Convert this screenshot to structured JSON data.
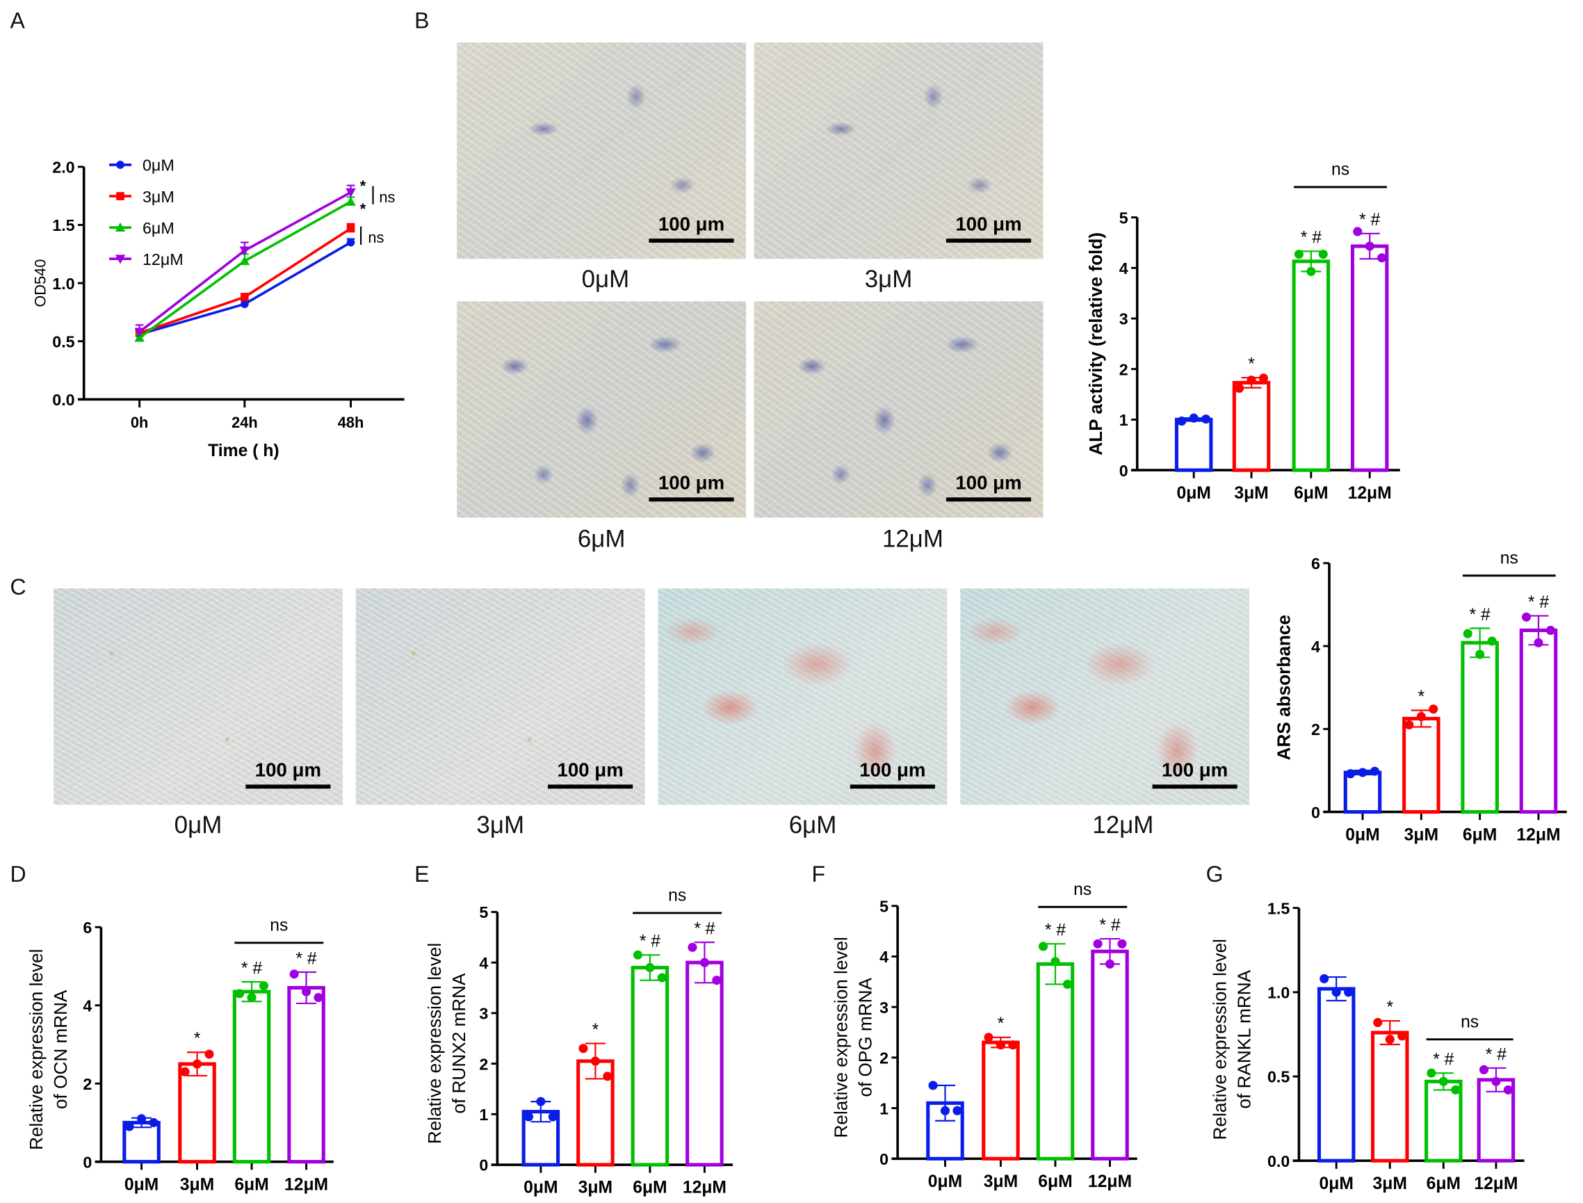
{
  "panels": {
    "A": "A",
    "B": "B",
    "C": "C",
    "D": "D",
    "E": "E",
    "F": "F",
    "G": "G"
  },
  "scale_bar": "100 μm",
  "B_images": [
    "0μM",
    "3μM",
    "6μM",
    "12μM"
  ],
  "C_images": [
    "0μM",
    "3μM",
    "6μM",
    "12μM"
  ],
  "colors": {
    "0μM": "#0a1de8",
    "3μM": "#ff0000",
    "6μM": "#00c000",
    "12μM": "#a000e0"
  },
  "chart_data": [
    {
      "id": "A",
      "type": "line",
      "xlabel": "Time ( h)",
      "ylabel": "OD540",
      "categories": [
        "0h",
        "24h",
        "48h"
      ],
      "ylim": [
        0,
        2.0
      ],
      "yticks": [
        "0.0",
        "0.5",
        "1.0",
        "1.5",
        "2.0"
      ],
      "legend": "top-left",
      "series": [
        {
          "name": "0μM",
          "values": [
            0.56,
            0.82,
            1.35
          ],
          "err": [
            0.03,
            0.03,
            0.03
          ]
        },
        {
          "name": "3μM",
          "values": [
            0.57,
            0.88,
            1.47
          ],
          "err": [
            0.03,
            0.03,
            0.04
          ]
        },
        {
          "name": "6μM",
          "values": [
            0.53,
            1.19,
            1.7
          ],
          "err": [
            0.03,
            0.06,
            0.04
          ]
        },
        {
          "name": "12μM",
          "values": [
            0.58,
            1.28,
            1.78
          ],
          "err": [
            0.06,
            0.07,
            0.06
          ]
        }
      ],
      "annotations": [
        "*",
        "*",
        "ns",
        "ns"
      ]
    },
    {
      "id": "B",
      "type": "bar",
      "ylabel": "ALP activity (relative fold)",
      "categories": [
        "0μM",
        "3μM",
        "6μM",
        "12μM"
      ],
      "ylim": [
        0,
        5
      ],
      "yticks": [
        "0",
        "1",
        "2",
        "3",
        "4",
        "5"
      ],
      "values": [
        1.0,
        1.73,
        4.13,
        4.43
      ],
      "sd": [
        0.03,
        0.1,
        0.2,
        0.25
      ],
      "points": [
        [
          0.97,
          1.03,
          1.01
        ],
        [
          1.62,
          1.78,
          1.82
        ],
        [
          4.27,
          3.93,
          4.27
        ],
        [
          4.72,
          4.43,
          4.2
        ]
      ],
      "marks": [
        "",
        "*",
        "*#",
        "*#"
      ],
      "bracket": {
        "from": 2,
        "to": 3,
        "label": "ns",
        "level": 5.6
      }
    },
    {
      "id": "C",
      "type": "bar",
      "ylabel": "ARS absorbance",
      "categories": [
        "0μM",
        "3μM",
        "6μM",
        "12μM"
      ],
      "ylim": [
        0,
        6
      ],
      "yticks": [
        "0",
        "2",
        "4",
        "6"
      ],
      "values": [
        0.95,
        2.25,
        4.08,
        4.38
      ],
      "sd": [
        0.05,
        0.2,
        0.35,
        0.35
      ],
      "points": [
        [
          0.92,
          0.95,
          0.98
        ],
        [
          2.1,
          2.3,
          2.48
        ],
        [
          4.3,
          3.8,
          4.12
        ],
        [
          4.7,
          4.08,
          4.38
        ]
      ],
      "marks": [
        "",
        "*",
        "*#",
        "*#"
      ],
      "bracket": {
        "from": 2,
        "to": 3,
        "label": "ns",
        "level": 5.7
      }
    },
    {
      "id": "D",
      "type": "bar",
      "ylabel": [
        "Relative expression level",
        "of OCN mRNA"
      ],
      "categories": [
        "0μM",
        "3μM",
        "6μM",
        "12μM"
      ],
      "ylim": [
        0,
        6
      ],
      "yticks": [
        "0",
        "2",
        "4",
        "6"
      ],
      "values": [
        1.0,
        2.5,
        4.35,
        4.45
      ],
      "sd": [
        0.12,
        0.3,
        0.25,
        0.4
      ],
      "points": [
        [
          0.9,
          1.1,
          1.0
        ],
        [
          2.3,
          2.5,
          2.75
        ],
        [
          4.3,
          4.2,
          4.5
        ],
        [
          4.8,
          4.35,
          4.2
        ]
      ],
      "marks": [
        "",
        "*",
        "*#",
        "*#"
      ],
      "bracket": {
        "from": 2,
        "to": 3,
        "label": "ns",
        "level": 5.6
      }
    },
    {
      "id": "E",
      "type": "bar",
      "ylabel": [
        "Relative expression level",
        "of RUNX2 mRNA"
      ],
      "categories": [
        "0μM",
        "3μM",
        "6μM",
        "12μM"
      ],
      "ylim": [
        0,
        5
      ],
      "yticks": [
        "0",
        "1",
        "2",
        "3",
        "4",
        "5"
      ],
      "values": [
        1.05,
        2.05,
        3.9,
        4.0
      ],
      "sd": [
        0.2,
        0.35,
        0.25,
        0.4
      ],
      "points": [
        [
          0.95,
          1.25,
          0.95
        ],
        [
          2.3,
          2.05,
          1.75
        ],
        [
          4.15,
          3.9,
          3.7
        ],
        [
          4.3,
          4.0,
          3.65
        ]
      ],
      "marks": [
        "",
        "*",
        "*#",
        "*#"
      ],
      "bracket": {
        "from": 2,
        "to": 3,
        "label": "ns",
        "level": 4.98
      }
    },
    {
      "id": "F",
      "type": "bar",
      "ylabel": [
        "Relative expression level",
        "of OPG mRNA"
      ],
      "categories": [
        "0μM",
        "3μM",
        "6μM",
        "12μM"
      ],
      "ylim": [
        0,
        5
      ],
      "yticks": [
        "0",
        "1",
        "2",
        "3",
        "4",
        "5"
      ],
      "values": [
        1.1,
        2.3,
        3.85,
        4.1
      ],
      "sd": [
        0.35,
        0.1,
        0.4,
        0.25
      ],
      "points": [
        [
          1.45,
          0.95,
          0.95
        ],
        [
          2.4,
          2.25,
          2.25
        ],
        [
          4.2,
          3.9,
          3.45
        ],
        [
          4.25,
          3.85,
          4.25
        ]
      ],
      "marks": [
        "",
        "*",
        "*#",
        "*#"
      ],
      "bracket": {
        "from": 2,
        "to": 3,
        "label": "ns",
        "level": 4.98
      }
    },
    {
      "id": "G",
      "type": "bar",
      "ylabel": [
        "Relative expression level",
        "of RANKL mRNA"
      ],
      "categories": [
        "0μM",
        "3μM",
        "6μM",
        "12μM"
      ],
      "ylim": [
        0,
        1.5
      ],
      "yticks": [
        "0.0",
        "0.5",
        "1.0",
        "1.5"
      ],
      "values": [
        1.02,
        0.76,
        0.47,
        0.48
      ],
      "sd": [
        0.07,
        0.07,
        0.05,
        0.07
      ],
      "points": [
        [
          1.08,
          1.0,
          1.0
        ],
        [
          0.82,
          0.72,
          0.74
        ],
        [
          0.52,
          0.47,
          0.42
        ],
        [
          0.54,
          0.47,
          0.42
        ]
      ],
      "marks": [
        "",
        "*",
        "*#",
        "*#"
      ],
      "bracket": {
        "from": 2,
        "to": 3,
        "label": "ns",
        "level": 0.72
      }
    }
  ]
}
